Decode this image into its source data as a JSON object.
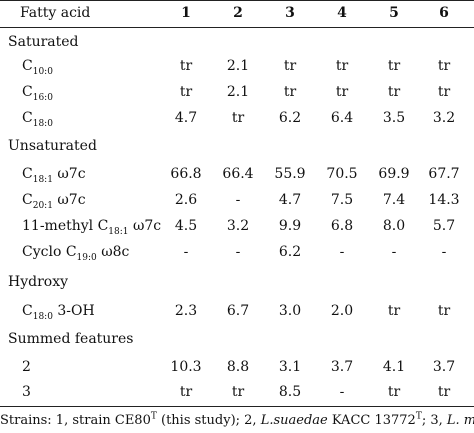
{
  "table": {
    "header": {
      "label": "Fatty acid",
      "columns": [
        "1",
        "2",
        "3",
        "4",
        "5",
        "6"
      ]
    },
    "sections": [
      {
        "name": "Saturated"
      },
      {
        "name": "Unsaturated"
      },
      {
        "name": "Hydroxy"
      },
      {
        "name": "Summed features"
      }
    ],
    "rows": [
      {
        "base": "C",
        "sub": "10:0",
        "suffix": "",
        "values": [
          "tr",
          "2.1",
          "tr",
          "tr",
          "tr",
          "tr"
        ]
      },
      {
        "base": "C",
        "sub": "16:0",
        "suffix": "",
        "values": [
          "tr",
          "2.1",
          "tr",
          "tr",
          "tr",
          "tr"
        ]
      },
      {
        "base": "C",
        "sub": "18:0",
        "suffix": "",
        "values": [
          "4.7",
          "tr",
          "6.2",
          "6.4",
          "3.5",
          "3.2"
        ]
      },
      {
        "base": "C",
        "sub": "18:1",
        "suffix": " ω7c",
        "values": [
          "66.8",
          "66.4",
          "55.9",
          "70.5",
          "69.9",
          "67.7"
        ]
      },
      {
        "base": "C",
        "sub": "20:1",
        "suffix": " ω7c",
        "values": [
          "2.6",
          "-",
          "4.7",
          "7.5",
          "7.4",
          "14.3"
        ]
      },
      {
        "base": "11-methyl C",
        "sub": "18:1",
        "suffix": " ω7c",
        "values": [
          "4.5",
          "3.2",
          "9.9",
          "6.8",
          "8.0",
          "5.7"
        ]
      },
      {
        "base": "Cyclo C",
        "sub": "19:0",
        "suffix": " ω8c",
        "values": [
          "-",
          "-",
          "6.2",
          "-",
          "-",
          "-"
        ]
      },
      {
        "base": "C",
        "sub": "18:0",
        "suffix": " 3-OH",
        "values": [
          "2.3",
          "6.7",
          "3.0",
          "2.0",
          "tr",
          "tr"
        ]
      },
      {
        "base": "2",
        "sub": "",
        "suffix": "",
        "values": [
          "10.3",
          "8.8",
          "3.1",
          "3.7",
          "4.1",
          "3.7"
        ]
      },
      {
        "base": "3",
        "sub": "",
        "suffix": "",
        "values": [
          "tr",
          "tr",
          "8.5",
          "-",
          "tr",
          "tr"
        ]
      }
    ]
  },
  "footnote": {
    "p1": "Strains: 1, strain CE80",
    "sup1": "T",
    "p2": " (this study); 2, ",
    "italic1": "L.suaedae",
    "p3": " KACC 13772",
    "sup2": "T",
    "p4": "; 3, ",
    "italic2": "L. marina"
  }
}
